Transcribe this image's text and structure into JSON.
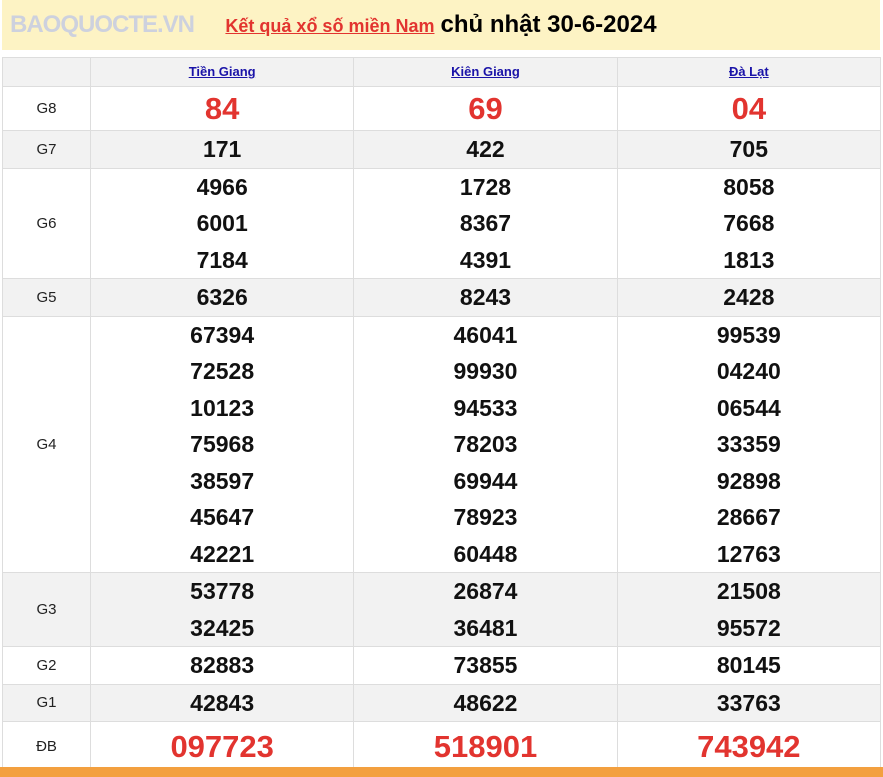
{
  "title": {
    "link": "Kết quả xổ số miền Nam",
    "date": "chủ nhật 30-6-2024"
  },
  "provinces": [
    "Tiền Giang",
    "Kiên Giang",
    "Đà Lạt"
  ],
  "prizes": [
    {
      "label": "G8",
      "values": [
        [
          "84"
        ],
        [
          "69"
        ],
        [
          "04"
        ]
      ]
    },
    {
      "label": "G7",
      "values": [
        [
          "171"
        ],
        [
          "422"
        ],
        [
          "705"
        ]
      ]
    },
    {
      "label": "G6",
      "values": [
        [
          "4966",
          "6001",
          "7184"
        ],
        [
          "1728",
          "8367",
          "4391"
        ],
        [
          "8058",
          "7668",
          "1813"
        ]
      ]
    },
    {
      "label": "G5",
      "values": [
        [
          "6326"
        ],
        [
          "8243"
        ],
        [
          "2428"
        ]
      ]
    },
    {
      "label": "G4",
      "values": [
        [
          "67394",
          "72528",
          "10123",
          "75968",
          "38597",
          "45647",
          "42221"
        ],
        [
          "46041",
          "99930",
          "94533",
          "78203",
          "69944",
          "78923",
          "60448"
        ],
        [
          "99539",
          "04240",
          "06544",
          "33359",
          "92898",
          "28667",
          "12763"
        ]
      ]
    },
    {
      "label": "G3",
      "values": [
        [
          "53778",
          "32425"
        ],
        [
          "26874",
          "36481"
        ],
        [
          "21508",
          "95572"
        ]
      ]
    },
    {
      "label": "G2",
      "values": [
        [
          "82883"
        ],
        [
          "73855"
        ],
        [
          "80145"
        ]
      ]
    },
    {
      "label": "G1",
      "values": [
        [
          "42843"
        ],
        [
          "48622"
        ],
        [
          "33763"
        ]
      ]
    },
    {
      "label": "ĐB",
      "values": [
        [
          "097723"
        ],
        [
          "518901"
        ],
        [
          "743942"
        ]
      ]
    }
  ],
  "watermark": "BAOQUOCTE.VN",
  "colors": {
    "accent": "#e2342f",
    "link": "#1a13a8",
    "title_bg": "#fdf3c4",
    "footer": "#f3a03f"
  }
}
